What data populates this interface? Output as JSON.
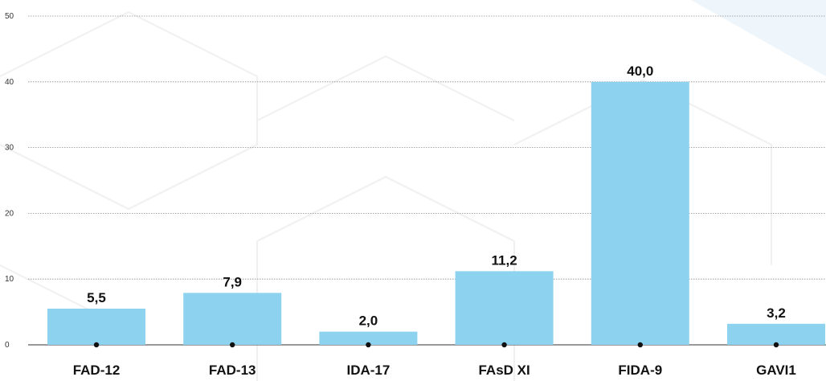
{
  "chart_data": {
    "type": "bar",
    "categories": [
      "FAD-12",
      "FAD-13",
      "IDA-17",
      "FAsD XI",
      "FIDA-9",
      "GAVI1"
    ],
    "values": [
      5.5,
      7.9,
      2.0,
      11.2,
      40.0,
      3.2
    ],
    "value_labels": [
      "5,5",
      "7,9",
      "2,0",
      "11,2",
      "40,0",
      "3,2"
    ],
    "y_ticks": [
      0,
      10,
      20,
      30,
      40,
      50
    ],
    "ylim": [
      0,
      50
    ],
    "grid": true,
    "legend": "none",
    "colors": {
      "bar": "#8dd3f0",
      "grid": "#8a8a8a",
      "text": "#111111",
      "dot": "#111111",
      "watermark": "#e9f4fb"
    }
  }
}
